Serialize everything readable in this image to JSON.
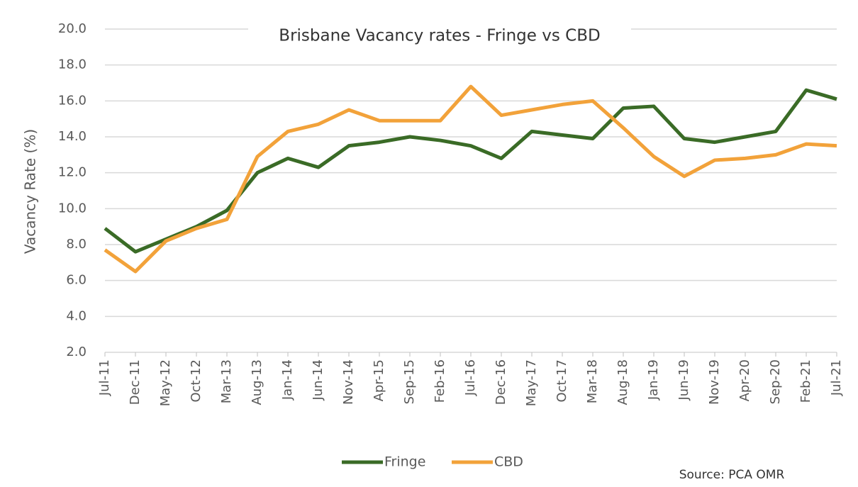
{
  "chart_data": {
    "type": "line",
    "title": "Brisbane Vacancy rates - Fringe vs CBD",
    "y_label": "Vacancy Rate (%)",
    "source": "Source: PCA OMR",
    "categories": [
      "Jul-11",
      "Dec-11",
      "May-12",
      "Oct-12",
      "Mar-13",
      "Aug-13",
      "Jan-14",
      "Jun-14",
      "Nov-14",
      "Apr-15",
      "Sep-15",
      "Feb-16",
      "Jul-16",
      "Dec-16",
      "May-17",
      "Oct-17",
      "Mar-18",
      "Aug-18",
      "Jan-19",
      "Jun-19",
      "Nov-19",
      "Apr-20",
      "Sep-20",
      "Feb-21",
      "Jul-21"
    ],
    "series": [
      {
        "name": "Fringe",
        "color": "#3a6b26",
        "values": [
          8.9,
          7.6,
          8.3,
          9.0,
          9.9,
          12.0,
          12.8,
          12.3,
          13.5,
          13.7,
          14.0,
          13.8,
          13.5,
          12.8,
          14.3,
          14.1,
          13.9,
          15.6,
          15.7,
          13.9,
          13.7,
          14.0,
          14.3,
          16.6,
          16.1
        ]
      },
      {
        "name": "CBD",
        "color": "#f2a23a",
        "values": [
          7.7,
          6.5,
          8.2,
          8.9,
          9.4,
          12.9,
          14.3,
          14.7,
          15.5,
          14.9,
          14.9,
          14.9,
          16.8,
          15.2,
          15.5,
          15.8,
          16.0,
          14.5,
          12.9,
          11.8,
          12.7,
          12.8,
          13.0,
          13.6,
          13.5
        ]
      }
    ],
    "ylim": [
      2,
      20
    ],
    "yticks": [
      {
        "value": 2,
        "label": "2.0"
      },
      {
        "value": 4,
        "label": "4.0"
      },
      {
        "value": 6,
        "label": "6.0"
      },
      {
        "value": 8,
        "label": "8.0"
      },
      {
        "value": 10,
        "label": "10.0"
      },
      {
        "value": 12,
        "label": "12.0"
      },
      {
        "value": 14,
        "label": "14.0"
      },
      {
        "value": 16,
        "label": "16.0"
      },
      {
        "value": 18,
        "label": "18.0"
      },
      {
        "value": 20,
        "label": "20.0"
      }
    ],
    "grid": true,
    "legend": "bottom"
  }
}
